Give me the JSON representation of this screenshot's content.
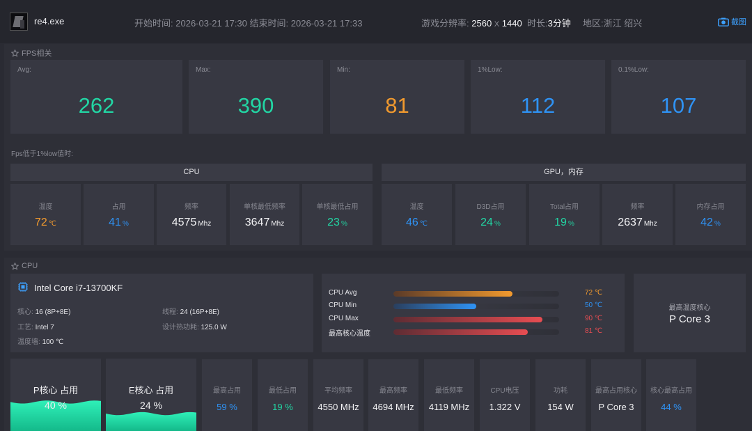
{
  "header": {
    "exe": "re4.exe",
    "start_label": "开始时间:",
    "start_time": "2026-03-21 17:30",
    "end_label": "结束时间:",
    "end_time": "2026-03-21 17:33",
    "res_label": "游戏分辨率:",
    "res_w": "2560",
    "res_x": "X",
    "res_h": "1440",
    "dur_label": "时长:",
    "duration": "3分钟",
    "region_label": "地区:",
    "region": "浙江 绍兴",
    "screenshot": "截图"
  },
  "fps": {
    "title": "FPS相关",
    "stats": [
      {
        "label": "Avg:",
        "value": "262",
        "color": "#22d6a4"
      },
      {
        "label": "Max:",
        "value": "390",
        "color": "#22d6a4"
      },
      {
        "label": "Min:",
        "value": "81",
        "color": "#f29a2e"
      },
      {
        "label": "1%Low:",
        "value": "112",
        "color": "#2f93f5"
      },
      {
        "label": "0.1%Low:",
        "value": "107",
        "color": "#2f93f5"
      }
    ],
    "below_label": "Fps低于1%low值时:",
    "cpu_head": "CPU",
    "gpu_head": "GPU，内存",
    "cpu_items": [
      {
        "label": "温度",
        "value": "72",
        "unit": "℃",
        "color": "#f29a2e"
      },
      {
        "label": "占用",
        "value": "41",
        "unit": "%",
        "color": "#2f93f5"
      },
      {
        "label": "频率",
        "value": "4575",
        "unit": "Mhz",
        "color": "#f2f2f4"
      },
      {
        "label": "单核最低频率",
        "value": "3647",
        "unit": "Mhz",
        "color": "#f2f2f4"
      },
      {
        "label": "单核最低占用",
        "value": "23",
        "unit": "%",
        "color": "#22d6a4"
      }
    ],
    "gpu_items": [
      {
        "label": "温度",
        "value": "46",
        "unit": "℃",
        "color": "#2f93f5"
      },
      {
        "label": "D3D占用",
        "value": "24",
        "unit": "%",
        "color": "#22d6a4"
      },
      {
        "label": "Total占用",
        "value": "19",
        "unit": "%",
        "color": "#22d6a4"
      },
      {
        "label": "频率",
        "value": "2637",
        "unit": "Mhz",
        "color": "#f2f2f4"
      },
      {
        "label": "内存占用",
        "value": "42",
        "unit": "%",
        "color": "#2f93f5"
      }
    ]
  },
  "cpu": {
    "title": "CPU",
    "model": "Intel Core i7-13700KF",
    "core_label": "核心:",
    "core": "16 (8P+8E)",
    "thread_label": "线程:",
    "thread": "24 (16P+8E)",
    "process_label": "工艺:",
    "process": "Intel 7",
    "tdp_label": "设计热功耗:",
    "tdp": "125.0 W",
    "tjmax_label": "温度墙:",
    "tjmax": "100 ℃",
    "temp_bars": [
      {
        "label": "CPU Avg",
        "value": "72 ℃",
        "level": 72,
        "from": "#5a3a28",
        "to": "#f29a2e",
        "color": "#f29a2e"
      },
      {
        "label": "CPU Min",
        "value": "50 ℃",
        "level": 50,
        "from": "#2a3f5e",
        "to": "#2f93f5",
        "color": "#2f93f5"
      },
      {
        "label": "CPU Max",
        "value": "90 ℃",
        "level": 90,
        "from": "#5e2c33",
        "to": "#e74d52",
        "color": "#e74d52"
      },
      {
        "label": "最高核心温度",
        "value": "81 ℃",
        "level": 81,
        "from": "#5e2c33",
        "to": "#e74d52",
        "color": "#e74d52"
      }
    ],
    "hottest_label": "最高温度核心",
    "hottest_core": "P Core 3",
    "p_label": "P核心 占用",
    "p_value": "40 %",
    "p_level": 40,
    "e_label": "E核心 占用",
    "e_value": "24 %",
    "e_level": 24,
    "bottom": [
      {
        "label": "最高占用",
        "value": "59 %",
        "color": "#2f93f5"
      },
      {
        "label": "最低占用",
        "value": "19 %",
        "color": "#22d6a4"
      },
      {
        "label": "平均频率",
        "value": "4550 MHz",
        "color": "#f2f2f4"
      },
      {
        "label": "最高频率",
        "value": "4694 MHz",
        "color": "#f2f2f4"
      },
      {
        "label": "最低频率",
        "value": "4119 MHz",
        "color": "#f2f2f4"
      },
      {
        "label": "CPU电压",
        "value": "1.322 V",
        "color": "#f2f2f4"
      },
      {
        "label": "功耗",
        "value": "154 W",
        "color": "#f2f2f4"
      },
      {
        "label": "最高占用核心",
        "value": "P Core 3",
        "color": "#f2f2f4"
      },
      {
        "label": "核心最高占用",
        "value": "44 %",
        "color": "#2f93f5"
      }
    ]
  }
}
